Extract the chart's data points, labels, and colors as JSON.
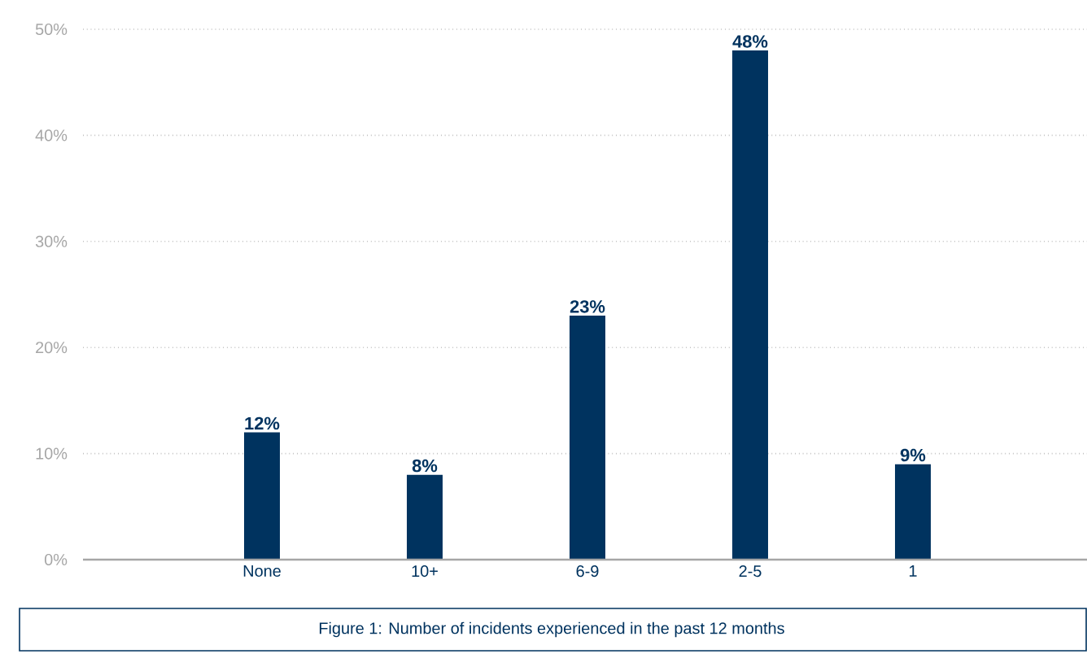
{
  "chart_data": {
    "type": "bar",
    "categories": [
      "None",
      "10+",
      "6-9",
      "2-5",
      "1"
    ],
    "values": [
      12,
      8,
      23,
      48,
      9
    ],
    "value_labels": [
      "12%",
      "8%",
      "23%",
      "48%",
      "9%"
    ],
    "color": "#00335f",
    "ylim": [
      0,
      50
    ],
    "yticks": [
      {
        "value": 0,
        "label": "0%"
      },
      {
        "value": 10,
        "label": "10%"
      },
      {
        "value": 20,
        "label": "20%"
      },
      {
        "value": 30,
        "label": "30%"
      },
      {
        "value": 40,
        "label": "40%"
      },
      {
        "value": 50,
        "label": "50%"
      }
    ],
    "grid": "y",
    "annotations": [
      "Figure 1: Number of incidents experienced in the past 12 months"
    ]
  }
}
